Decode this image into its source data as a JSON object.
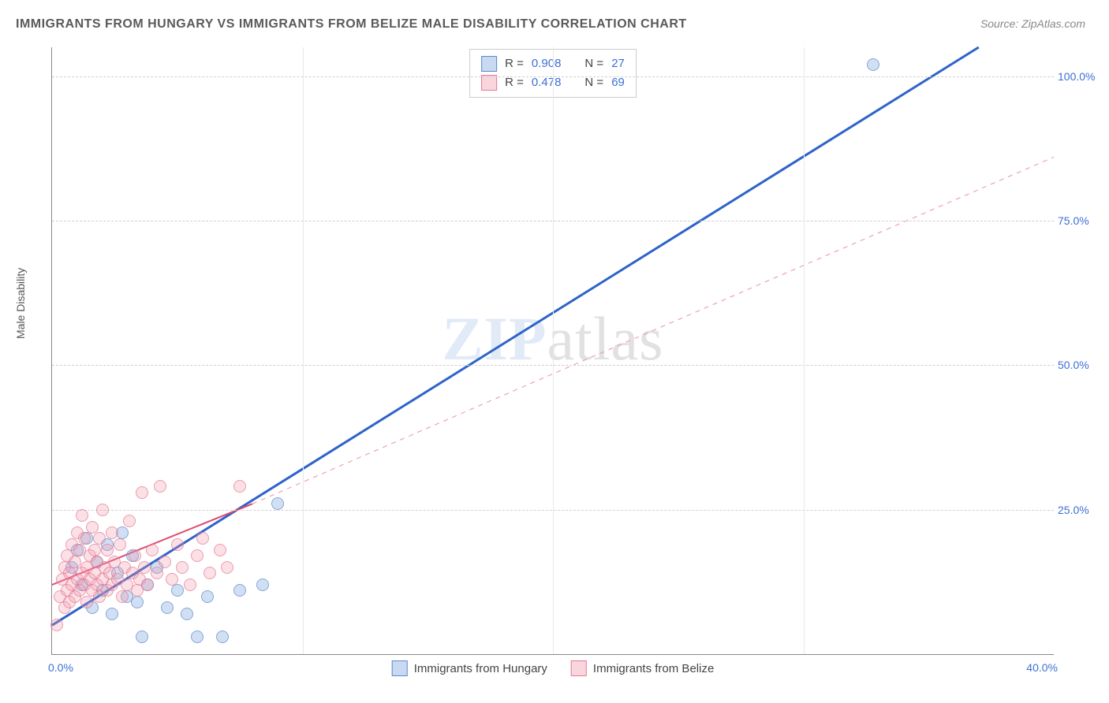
{
  "title": "IMMIGRANTS FROM HUNGARY VS IMMIGRANTS FROM BELIZE MALE DISABILITY CORRELATION CHART",
  "source": "Source: ZipAtlas.com",
  "ylabel": "Male Disability",
  "watermark_zip": "ZIP",
  "watermark_atlas": "atlas",
  "chart": {
    "type": "scatter",
    "xlim": [
      0,
      40
    ],
    "ylim": [
      0,
      105
    ],
    "x_ticks": [
      {
        "v": 0,
        "label": "0.0%",
        "edge": "left"
      },
      {
        "v": 40,
        "label": "40.0%",
        "edge": "right"
      }
    ],
    "y_ticks": [
      {
        "v": 25,
        "label": "25.0%"
      },
      {
        "v": 50,
        "label": "50.0%"
      },
      {
        "v": 75,
        "label": "75.0%"
      },
      {
        "v": 100,
        "label": "100.0%"
      }
    ],
    "x_grid": [
      10,
      20,
      30
    ],
    "colors": {
      "blue_fill": "#9cbce8",
      "blue_stroke": "#5a8ad0",
      "pink_fill": "#f4b6c4",
      "pink_stroke": "#e57a95",
      "tick_text": "#3b6fd6",
      "grid": "#d0d0d0"
    },
    "series": [
      {
        "name": "Immigrants from Hungary",
        "color": "blue",
        "R": "0.908",
        "N": "27",
        "trend": {
          "x1": 0,
          "y1": 5,
          "x2": 37,
          "y2": 105,
          "style": "solid",
          "width": 3,
          "stroke": "#2e63c9"
        },
        "points": [
          {
            "x": 0.8,
            "y": 15
          },
          {
            "x": 1.0,
            "y": 18
          },
          {
            "x": 1.2,
            "y": 12
          },
          {
            "x": 1.4,
            "y": 20
          },
          {
            "x": 1.6,
            "y": 8
          },
          {
            "x": 1.8,
            "y": 16
          },
          {
            "x": 2.0,
            "y": 11
          },
          {
            "x": 2.2,
            "y": 19
          },
          {
            "x": 2.4,
            "y": 7
          },
          {
            "x": 2.6,
            "y": 14
          },
          {
            "x": 2.8,
            "y": 21
          },
          {
            "x": 3.0,
            "y": 10
          },
          {
            "x": 3.2,
            "y": 17
          },
          {
            "x": 3.4,
            "y": 9
          },
          {
            "x": 3.6,
            "y": 3
          },
          {
            "x": 3.8,
            "y": 12
          },
          {
            "x": 4.2,
            "y": 15
          },
          {
            "x": 4.6,
            "y": 8
          },
          {
            "x": 5.0,
            "y": 11
          },
          {
            "x": 5.4,
            "y": 7
          },
          {
            "x": 5.8,
            "y": 3
          },
          {
            "x": 6.2,
            "y": 10
          },
          {
            "x": 6.8,
            "y": 3
          },
          {
            "x": 7.5,
            "y": 11
          },
          {
            "x": 8.4,
            "y": 12
          },
          {
            "x": 9.0,
            "y": 26
          },
          {
            "x": 32.8,
            "y": 102
          }
        ]
      },
      {
        "name": "Immigrants from Belize",
        "color": "pink",
        "R": "0.478",
        "N": "69",
        "trend_solid": {
          "x1": 0,
          "y1": 12,
          "x2": 8,
          "y2": 26,
          "style": "solid",
          "width": 2,
          "stroke": "#e04a6e"
        },
        "trend_dash": {
          "x1": 8,
          "y1": 26,
          "x2": 40,
          "y2": 86,
          "style": "dashed",
          "width": 1.2,
          "stroke": "#f0a0b0"
        },
        "points": [
          {
            "x": 0.3,
            "y": 10
          },
          {
            "x": 0.4,
            "y": 13
          },
          {
            "x": 0.5,
            "y": 8
          },
          {
            "x": 0.5,
            "y": 15
          },
          {
            "x": 0.6,
            "y": 11
          },
          {
            "x": 0.6,
            "y": 17
          },
          {
            "x": 0.7,
            "y": 9
          },
          {
            "x": 0.7,
            "y": 14
          },
          {
            "x": 0.8,
            "y": 12
          },
          {
            "x": 0.8,
            "y": 19
          },
          {
            "x": 0.9,
            "y": 10
          },
          {
            "x": 0.9,
            "y": 16
          },
          {
            "x": 1.0,
            "y": 13
          },
          {
            "x": 1.0,
            "y": 21
          },
          {
            "x": 1.1,
            "y": 11
          },
          {
            "x": 1.1,
            "y": 18
          },
          {
            "x": 1.2,
            "y": 14
          },
          {
            "x": 1.2,
            "y": 24
          },
          {
            "x": 1.3,
            "y": 12
          },
          {
            "x": 1.3,
            "y": 20
          },
          {
            "x": 1.4,
            "y": 15
          },
          {
            "x": 1.4,
            "y": 9
          },
          {
            "x": 1.5,
            "y": 17
          },
          {
            "x": 1.5,
            "y": 13
          },
          {
            "x": 1.6,
            "y": 11
          },
          {
            "x": 1.6,
            "y": 22
          },
          {
            "x": 1.7,
            "y": 14
          },
          {
            "x": 1.7,
            "y": 18
          },
          {
            "x": 1.8,
            "y": 12
          },
          {
            "x": 1.8,
            "y": 16
          },
          {
            "x": 1.9,
            "y": 10
          },
          {
            "x": 1.9,
            "y": 20
          },
          {
            "x": 2.0,
            "y": 13
          },
          {
            "x": 2.0,
            "y": 25
          },
          {
            "x": 2.1,
            "y": 15
          },
          {
            "x": 2.2,
            "y": 11
          },
          {
            "x": 2.2,
            "y": 18
          },
          {
            "x": 2.3,
            "y": 14
          },
          {
            "x": 2.4,
            "y": 12
          },
          {
            "x": 2.4,
            "y": 21
          },
          {
            "x": 2.5,
            "y": 16
          },
          {
            "x": 2.6,
            "y": 13
          },
          {
            "x": 2.7,
            "y": 19
          },
          {
            "x": 2.8,
            "y": 10
          },
          {
            "x": 2.9,
            "y": 15
          },
          {
            "x": 3.0,
            "y": 12
          },
          {
            "x": 3.1,
            "y": 23
          },
          {
            "x": 3.2,
            "y": 14
          },
          {
            "x": 3.3,
            "y": 17
          },
          {
            "x": 3.4,
            "y": 11
          },
          {
            "x": 3.5,
            "y": 13
          },
          {
            "x": 3.6,
            "y": 28
          },
          {
            "x": 3.7,
            "y": 15
          },
          {
            "x": 3.8,
            "y": 12
          },
          {
            "x": 4.0,
            "y": 18
          },
          {
            "x": 4.2,
            "y": 14
          },
          {
            "x": 4.3,
            "y": 29
          },
          {
            "x": 4.5,
            "y": 16
          },
          {
            "x": 4.8,
            "y": 13
          },
          {
            "x": 5.0,
            "y": 19
          },
          {
            "x": 5.2,
            "y": 15
          },
          {
            "x": 5.5,
            "y": 12
          },
          {
            "x": 5.8,
            "y": 17
          },
          {
            "x": 6.0,
            "y": 20
          },
          {
            "x": 6.3,
            "y": 14
          },
          {
            "x": 6.7,
            "y": 18
          },
          {
            "x": 7.0,
            "y": 15
          },
          {
            "x": 7.5,
            "y": 29
          },
          {
            "x": 0.2,
            "y": 5
          }
        ]
      }
    ]
  },
  "stat_legend": {
    "rows": [
      {
        "swatch": "blue",
        "R_label": "R =",
        "R": "0.908",
        "N_label": "N =",
        "N": "27"
      },
      {
        "swatch": "pink",
        "R_label": "R =",
        "R": "0.478",
        "N_label": "N =",
        "N": "69"
      }
    ]
  },
  "bottom_legend": {
    "items": [
      {
        "swatch": "blue",
        "label": "Immigrants from Hungary"
      },
      {
        "swatch": "pink",
        "label": "Immigrants from Belize"
      }
    ]
  }
}
